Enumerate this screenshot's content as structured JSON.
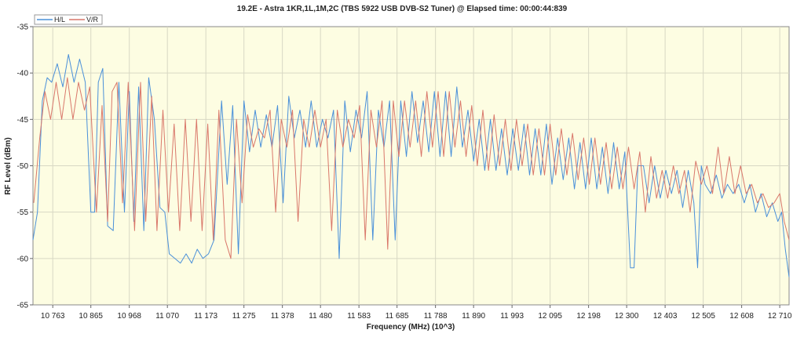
{
  "chart_data": {
    "type": "line",
    "title": "19.2E - Astra 1KR,1L,1M,2C (TBS 5922 USB DVB-S2 Tuner) @ Elapsed time: 00:00:44:839",
    "xlabel": "Frequency (MHz) (10^3)",
    "ylabel": "RF Level (dBm)",
    "xlim": [
      10710,
      12735
    ],
    "ylim": [
      -65,
      -35
    ],
    "y_ticks": [
      -35,
      -40,
      -45,
      -50,
      -55,
      -60,
      -65
    ],
    "x_tick_labels": [
      "10 763",
      "10 865",
      "10 968",
      "11 070",
      "11 173",
      "11 275",
      "11 378",
      "11 480",
      "11 583",
      "11 685",
      "11 788",
      "11 890",
      "11 993",
      "12 095",
      "12 198",
      "12 300",
      "12 403",
      "12 505",
      "12 608",
      "12 710"
    ],
    "x_tick_values": [
      10763,
      10865,
      10968,
      11070,
      11173,
      11275,
      11378,
      11480,
      11583,
      11685,
      11788,
      11890,
      11993,
      12095,
      12198,
      12300,
      12403,
      12505,
      12608,
      12710
    ],
    "grid": true,
    "legend_position": "top-left",
    "background_color": "#fdfde2",
    "series": [
      {
        "name": "H/L",
        "color": "#4a90d9",
        "x": [
          10710,
          10722,
          10735,
          10748,
          10760,
          10775,
          10790,
          10805,
          10820,
          10835,
          10850,
          10865,
          10875,
          10885,
          10897,
          10910,
          10925,
          10940,
          10955,
          10968,
          10980,
          10993,
          11007,
          11020,
          11035,
          11050,
          11063,
          11075,
          11090,
          11105,
          11120,
          11135,
          11150,
          11165,
          11180,
          11195,
          11215,
          11230,
          11245,
          11260,
          11275,
          11290,
          11305,
          11320,
          11335,
          11350,
          11365,
          11380,
          11395,
          11410,
          11425,
          11440,
          11455,
          11470,
          11485,
          11500,
          11515,
          11530,
          11545,
          11560,
          11575,
          11590,
          11605,
          11620,
          11635,
          11650,
          11665,
          11680,
          11695,
          11710,
          11725,
          11740,
          11755,
          11770,
          11785,
          11800,
          11815,
          11830,
          11845,
          11860,
          11875,
          11890,
          11905,
          11920,
          11935,
          11950,
          11965,
          11980,
          11995,
          12010,
          12025,
          12040,
          12055,
          12070,
          12085,
          12100,
          12115,
          12130,
          12145,
          12160,
          12175,
          12190,
          12205,
          12220,
          12235,
          12250,
          12265,
          12280,
          12295,
          12310,
          12320,
          12330,
          12345,
          12360,
          12375,
          12390,
          12405,
          12420,
          12435,
          12450,
          12465,
          12480,
          12490,
          12500,
          12510,
          12525,
          12540,
          12555,
          12570,
          12585,
          12600,
          12615,
          12630,
          12645,
          12660,
          12675,
          12690,
          12705,
          12715,
          12725,
          12735
        ],
        "y": [
          -58,
          -55,
          -43,
          -40.5,
          -41,
          -39,
          -41.5,
          -38,
          -41,
          -38.5,
          -41,
          -55,
          -55,
          -41,
          -39.5,
          -56.5,
          -57,
          -41,
          -55,
          -42,
          -56,
          -41.5,
          -57,
          -40.5,
          -45,
          -54.5,
          -55,
          -59.5,
          -60,
          -60.5,
          -59.5,
          -60.5,
          -59,
          -60,
          -59.5,
          -58,
          -43,
          -52,
          -43.5,
          -59.5,
          -43,
          -48.5,
          -44,
          -48,
          -44.5,
          -48,
          -43.5,
          -54,
          -42.5,
          -47,
          -44,
          -48,
          -43,
          -48,
          -45,
          -47,
          -44,
          -60,
          -43,
          -48.5,
          -44,
          -47,
          -42,
          -58,
          -44,
          -48,
          -43,
          -58,
          -43,
          -49,
          -42,
          -47.5,
          -43,
          -48.5,
          -42,
          -49,
          -42,
          -49,
          -41.5,
          -48,
          -44,
          -49.5,
          -45,
          -50.5,
          -45,
          -50.5,
          -46,
          -51,
          -46,
          -50.5,
          -45.5,
          -51,
          -46,
          -51,
          -45.5,
          -52,
          -47,
          -51.5,
          -47,
          -52.5,
          -47.5,
          -52.5,
          -47,
          -52.5,
          -48,
          -53,
          -47.5,
          -52.5,
          -48.5,
          -61,
          -61,
          -50,
          -50,
          -54,
          -50,
          -53.5,
          -50.5,
          -53,
          -50.5,
          -54.5,
          -50.5,
          -54,
          -61,
          -50,
          -52,
          -53,
          -51,
          -53.5,
          -52,
          -53,
          -52,
          -54,
          -52,
          -55,
          -53,
          -55.5,
          -54,
          -56,
          -55,
          -59,
          -62
        ]
      },
      {
        "name": "V/R",
        "color": "#d9776a",
        "x": [
          10712,
          10728,
          10742,
          10757,
          10772,
          10787,
          10802,
          10817,
          10832,
          10848,
          10862,
          10880,
          10895,
          10910,
          10922,
          10935,
          10950,
          10965,
          10982,
          10998,
          11012,
          11028,
          11042,
          11058,
          11073,
          11088,
          11103,
          11118,
          11133,
          11148,
          11163,
          11178,
          11193,
          11208,
          11225,
          11240,
          11255,
          11270,
          11285,
          11300,
          11315,
          11330,
          11345,
          11360,
          11375,
          11390,
          11405,
          11420,
          11435,
          11450,
          11465,
          11480,
          11495,
          11510,
          11525,
          11540,
          11555,
          11570,
          11585,
          11600,
          11615,
          11630,
          11645,
          11660,
          11675,
          11690,
          11705,
          11720,
          11735,
          11750,
          11765,
          11780,
          11795,
          11810,
          11825,
          11840,
          11855,
          11870,
          11885,
          11900,
          11915,
          11930,
          11945,
          11960,
          11975,
          11990,
          12005,
          12020,
          12035,
          12050,
          12065,
          12080,
          12095,
          12110,
          12125,
          12140,
          12155,
          12170,
          12185,
          12200,
          12215,
          12230,
          12245,
          12260,
          12275,
          12290,
          12305,
          12320,
          12335,
          12350,
          12365,
          12380,
          12395,
          12410,
          12425,
          12440,
          12455,
          12470,
          12485,
          12500,
          12515,
          12530,
          12545,
          12560,
          12575,
          12590,
          12605,
          12620,
          12635,
          12650,
          12665,
          12680,
          12695,
          12710,
          12722,
          12735
        ],
        "y": [
          -54,
          -47,
          -42,
          -45,
          -41,
          -45,
          -40.5,
          -45,
          -41,
          -44,
          -41.5,
          -55,
          -43.5,
          -56,
          -42,
          -41,
          -54,
          -41,
          -57,
          -41,
          -56,
          -42.5,
          -57,
          -44,
          -55,
          -45.5,
          -57,
          -45,
          -56,
          -45,
          -57,
          -45.5,
          -58,
          -44,
          -58,
          -60,
          -45,
          -54,
          -44.5,
          -48,
          -46,
          -47,
          -44,
          -55,
          -45,
          -48,
          -44,
          -56,
          -45,
          -48,
          -44,
          -48,
          -45,
          -57,
          -44,
          -48,
          -45,
          -47,
          -43.5,
          -58,
          -44,
          -48,
          -43,
          -59,
          -43,
          -49,
          -43,
          -48,
          -43,
          -49,
          -42,
          -48,
          -42,
          -49,
          -42,
          -48,
          -43,
          -49,
          -43.5,
          -50,
          -44,
          -50.5,
          -44.5,
          -50,
          -45,
          -50.5,
          -45,
          -50,
          -45.5,
          -51,
          -46,
          -51,
          -45.5,
          -51,
          -46,
          -51,
          -46.5,
          -51.5,
          -47,
          -52,
          -47,
          -52,
          -47.5,
          -52.5,
          -48,
          -52.5,
          -48,
          -52.5,
          -48.5,
          -55,
          -49,
          -53.5,
          -50.5,
          -53.5,
          -50,
          -53,
          -50.5,
          -55,
          -49.5,
          -52,
          -50,
          -53,
          -48,
          -53,
          -49,
          -53,
          -50,
          -53,
          -52,
          -54,
          -53,
          -54.5,
          -54,
          -53,
          -56,
          -58
        ]
      }
    ]
  }
}
